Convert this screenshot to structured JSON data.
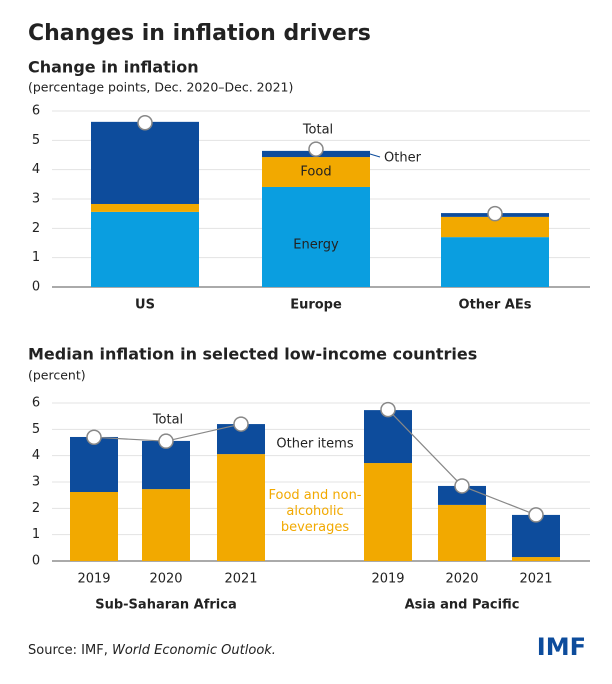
{
  "header": {
    "title": "Changes in inflation drivers"
  },
  "chart_data": [
    {
      "type": "bar",
      "stacked": true,
      "title": "Change in inflation",
      "subtitle": "(percentage points, Dec. 2020–Dec. 2021)",
      "categories": [
        "US",
        "Europe",
        "Other AEs"
      ],
      "series": [
        {
          "name": "Energy",
          "color": "#0a9ee0",
          "values": [
            2.56,
            3.41,
            1.7
          ]
        },
        {
          "name": "Food",
          "color": "#f2a900",
          "values": [
            0.27,
            1.02,
            0.69
          ]
        },
        {
          "name": "Other",
          "color": "#0d4c9c",
          "values": [
            2.8,
            0.21,
            0.13
          ]
        }
      ],
      "total": {
        "name": "Total",
        "values": [
          5.6,
          4.7,
          2.5
        ]
      },
      "ylim": [
        0,
        6
      ],
      "yticks": [
        0,
        1,
        2,
        3,
        4,
        5,
        6
      ],
      "grid": true
    },
    {
      "type": "grouped-stacked-bar",
      "title": "Median inflation in selected low-income countries",
      "subtitle": "(percent)",
      "series": [
        {
          "name": "Food and non-alcoholic beverages",
          "color": "#f2a900"
        },
        {
          "name": "Other items",
          "color": "#0d4c9c"
        }
      ],
      "total_name": "Total",
      "groups": [
        {
          "name": "Sub-Saharan Africa",
          "categories": [
            "2019",
            "2020",
            "2021"
          ],
          "values": [
            [
              2.62,
              2.73,
              4.06
            ],
            [
              2.09,
              1.83,
              1.14
            ]
          ],
          "totals": [
            4.7,
            4.55,
            5.2
          ]
        },
        {
          "name": "Asia and Pacific",
          "categories": [
            "2019",
            "2020",
            "2021"
          ],
          "values": [
            [
              3.72,
              2.13,
              0.15
            ],
            [
              2.01,
              0.72,
              1.6
            ]
          ],
          "totals": [
            5.75,
            2.85,
            1.75
          ]
        }
      ],
      "ylim": [
        0,
        6
      ],
      "yticks": [
        0,
        1,
        2,
        3,
        4,
        5,
        6
      ],
      "grid": true
    }
  ],
  "footer": {
    "source": "Source: IMF,",
    "source_title": "World Economic Outlook.",
    "logo": "IMF"
  }
}
